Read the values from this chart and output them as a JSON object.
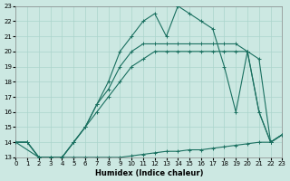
{
  "xlabel": "Humidex (Indice chaleur)",
  "bg_color": "#cce8e2",
  "grid_color": "#aad4cc",
  "line_color": "#1a7060",
  "xlim": [
    0,
    23
  ],
  "ylim": [
    13,
    23
  ],
  "xticks": [
    0,
    1,
    2,
    3,
    4,
    5,
    6,
    7,
    8,
    9,
    10,
    11,
    12,
    13,
    14,
    15,
    16,
    17,
    18,
    19,
    20,
    21,
    22,
    23
  ],
  "yticks": [
    13,
    14,
    15,
    16,
    17,
    18,
    19,
    20,
    21,
    22,
    23
  ],
  "line1_x": [
    0,
    1,
    2,
    3,
    4,
    5,
    6,
    7,
    8,
    9,
    10,
    11,
    12,
    13,
    14,
    15,
    16,
    17,
    18,
    19,
    20,
    21,
    22,
    23
  ],
  "line1_y": [
    14,
    14,
    13,
    13,
    13,
    13,
    13,
    13,
    13,
    13,
    13.1,
    13.2,
    13.3,
    13.4,
    13.4,
    13.5,
    13.5,
    13.6,
    13.7,
    13.8,
    13.9,
    14.0,
    14.0,
    14.5
  ],
  "line2_x": [
    0,
    1,
    2,
    3,
    4,
    5,
    6,
    7,
    8,
    9,
    10,
    11,
    12,
    13,
    14,
    15,
    16,
    17,
    18,
    19,
    20,
    21,
    22,
    23
  ],
  "line2_y": [
    14,
    14,
    13,
    13,
    13,
    14,
    15,
    16,
    17,
    18,
    19,
    19.5,
    20,
    20,
    20,
    20,
    20,
    20,
    20,
    20,
    20,
    19.5,
    14,
    14.5
  ],
  "line3_x": [
    0,
    1,
    2,
    3,
    4,
    5,
    6,
    7,
    8,
    9,
    10,
    11,
    12,
    13,
    14,
    15,
    16,
    17,
    18,
    19,
    20,
    21,
    22,
    23
  ],
  "line3_y": [
    14,
    14,
    13,
    13,
    13,
    14,
    15,
    16.5,
    17.5,
    19,
    20,
    20.5,
    20.5,
    20.5,
    20.5,
    20.5,
    20.5,
    20.5,
    20.5,
    20.5,
    20,
    16,
    14,
    14.5
  ],
  "line4_x": [
    0,
    2,
    3,
    4,
    5,
    6,
    7,
    8,
    9,
    10,
    11,
    12,
    13,
    14,
    15,
    16,
    17,
    18,
    19,
    20,
    21,
    22,
    23
  ],
  "line4_y": [
    14,
    13,
    13,
    13,
    14,
    15,
    16.5,
    18,
    20,
    21,
    22,
    22.5,
    21,
    23,
    22.5,
    22,
    21.5,
    19,
    16,
    20,
    16,
    14,
    14.5
  ]
}
